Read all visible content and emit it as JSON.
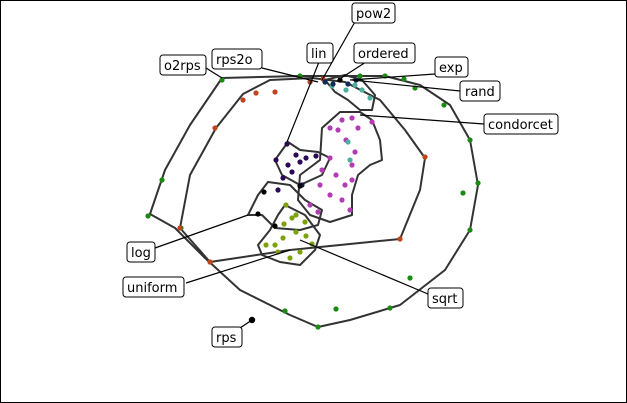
{
  "labels": {
    "pow2": "pow2",
    "lin": "lin",
    "ordered": "ordered",
    "rps2o": "rps2o",
    "o2rps": "o2rps",
    "exp": "exp",
    "rand": "rand",
    "condorcet": "condorcet",
    "log": "log",
    "uniform": "uniform",
    "sqrt": "sqrt",
    "rps": "rps"
  },
  "colors": {
    "green": "#1a8a12",
    "orange": "#c0441c",
    "magenta": "#b33bb3",
    "darkpurple": "#2a0a55",
    "olive": "#7ea10b",
    "teal": "#4fae9e",
    "navy": "#0e2a55",
    "black": "#000000",
    "hull": "#333333"
  }
}
